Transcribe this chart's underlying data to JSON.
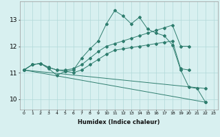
{
  "xlabel": "Humidex (Indice chaleur)",
  "bg_color": "#d8f0f0",
  "line_color": "#2e7d6e",
  "grid_color": "#b0d8d8",
  "xlim": [
    -0.5,
    23.5
  ],
  "ylim": [
    9.6,
    13.7
  ],
  "yticks": [
    10,
    11,
    12,
    13
  ],
  "xticks": [
    0,
    1,
    2,
    3,
    4,
    5,
    6,
    7,
    8,
    9,
    10,
    11,
    12,
    13,
    14,
    15,
    16,
    17,
    18,
    19,
    20,
    21,
    22,
    23
  ],
  "lines": [
    {
      "x": [
        0,
        1,
        2,
        3,
        4,
        5,
        6,
        7,
        8,
        9,
        10,
        11,
        12,
        13,
        14,
        15,
        16,
        17,
        18,
        19,
        20,
        21,
        22
      ],
      "y": [
        11.1,
        11.3,
        11.35,
        11.15,
        10.9,
        11.05,
        11.1,
        11.55,
        11.9,
        12.2,
        12.85,
        13.35,
        13.15,
        12.85,
        13.1,
        12.65,
        12.5,
        12.4,
        12.05,
        11.1,
        10.45,
        10.4,
        9.88
      ]
    },
    {
      "x": [
        0,
        1,
        2,
        3,
        4,
        5,
        6,
        7,
        8,
        9,
        10,
        11,
        12,
        13,
        14,
        15,
        16,
        17,
        18,
        19,
        20
      ],
      "y": [
        11.1,
        11.3,
        11.35,
        11.2,
        11.1,
        11.1,
        11.15,
        11.3,
        11.55,
        11.8,
        12.0,
        12.1,
        12.2,
        12.3,
        12.4,
        12.5,
        12.6,
        12.7,
        12.8,
        12.0,
        12.0
      ]
    },
    {
      "x": [
        0,
        1,
        2,
        3,
        4,
        5,
        6,
        7,
        8,
        9,
        10,
        11,
        12,
        13,
        14,
        15,
        16,
        17,
        18,
        19,
        20
      ],
      "y": [
        11.1,
        11.3,
        11.35,
        11.2,
        11.1,
        11.05,
        11.0,
        11.1,
        11.3,
        11.5,
        11.7,
        11.85,
        11.9,
        11.95,
        12.0,
        12.05,
        12.1,
        12.15,
        12.2,
        11.15,
        11.1
      ]
    },
    {
      "x": [
        0,
        22
      ],
      "y": [
        11.1,
        9.88
      ]
    },
    {
      "x": [
        0,
        22
      ],
      "y": [
        11.1,
        10.4
      ]
    }
  ]
}
